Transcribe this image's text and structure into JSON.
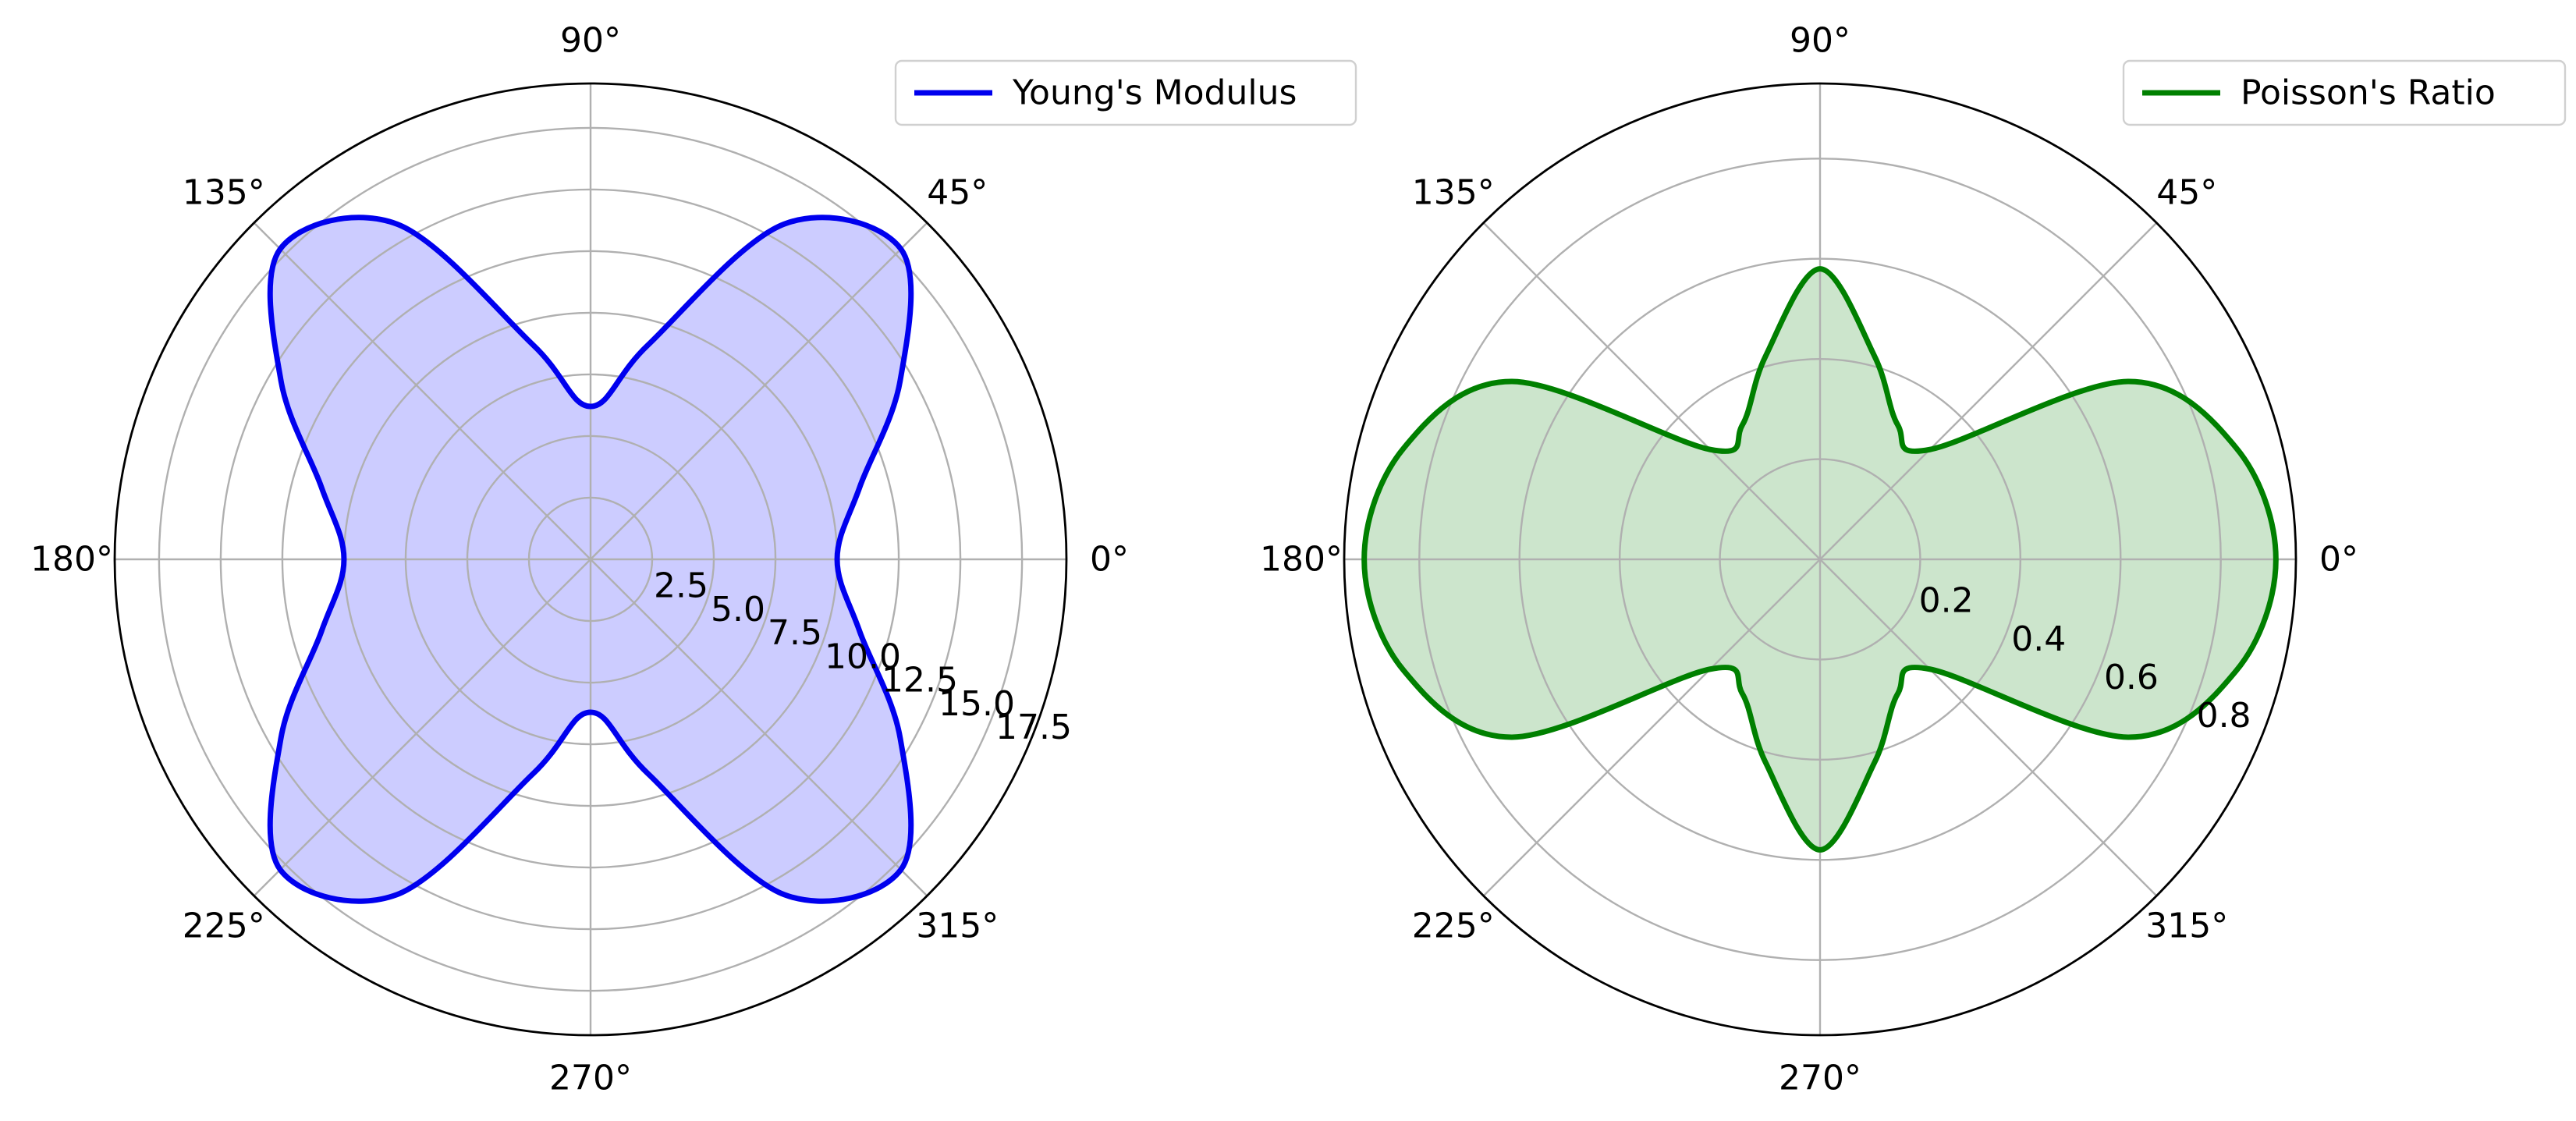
{
  "chart_data": [
    {
      "type": "polar-line",
      "title": "",
      "theta_tick_labels": [
        "0°",
        "45°",
        "90°",
        "135°",
        "180°",
        "225°",
        "270°",
        "315°"
      ],
      "theta_ticks_deg": [
        0,
        45,
        90,
        135,
        180,
        225,
        270,
        315
      ],
      "r_ticks": [
        2.5,
        5.0,
        7.5,
        10.0,
        12.5,
        15.0,
        17.5
      ],
      "r_tick_labels": [
        "2.5",
        "5.0",
        "7.5",
        "10.0",
        "12.5",
        "15.0",
        "17.5"
      ],
      "rlim": [
        0,
        19.3
      ],
      "grid": true,
      "legend_position": "upper-right",
      "series": [
        {
          "name": "Young's Modulus",
          "color": "#0000ee",
          "fill_color": "#ccccff",
          "theta_deg": [
            0,
            15,
            30,
            45,
            60,
            75,
            90,
            105,
            120,
            135,
            150,
            165,
            180,
            195,
            210,
            225,
            240,
            255,
            270,
            285,
            300,
            315,
            330,
            345
          ],
          "r": [
            10.0,
            11.3,
            14.5,
            17.8,
            15.7,
            9.0,
            6.2,
            9.0,
            15.7,
            17.8,
            14.5,
            11.3,
            10.0,
            11.3,
            14.5,
            17.8,
            15.7,
            9.0,
            6.2,
            9.0,
            15.7,
            17.8,
            14.5,
            11.3
          ]
        }
      ]
    },
    {
      "type": "polar-line",
      "title": "",
      "theta_tick_labels": [
        "0°",
        "45°",
        "90°",
        "135°",
        "180°",
        "225°",
        "270°",
        "315°"
      ],
      "theta_ticks_deg": [
        0,
        45,
        90,
        135,
        180,
        225,
        270,
        315
      ],
      "r_ticks": [
        0.2,
        0.4,
        0.6,
        0.8
      ],
      "r_tick_labels": [
        "0.2",
        "0.4",
        "0.6",
        "0.8"
      ],
      "rlim": [
        0,
        0.95
      ],
      "grid": true,
      "legend_position": "upper-right",
      "series": [
        {
          "name": "Poisson's Ratio",
          "color": "#008000",
          "fill_color": "#cce5cc",
          "theta_deg": [
            0,
            15,
            30,
            45,
            60,
            75,
            90,
            105,
            120,
            135,
            150,
            165,
            180,
            195,
            210,
            225,
            240,
            255,
            270,
            285,
            300,
            315,
            330,
            345
          ],
          "r": [
            0.91,
            0.86,
            0.71,
            0.31,
            0.31,
            0.42,
            0.58,
            0.42,
            0.31,
            0.31,
            0.71,
            0.86,
            0.91,
            0.86,
            0.71,
            0.31,
            0.31,
            0.42,
            0.58,
            0.42,
            0.31,
            0.31,
            0.71,
            0.86
          ]
        }
      ]
    }
  ]
}
